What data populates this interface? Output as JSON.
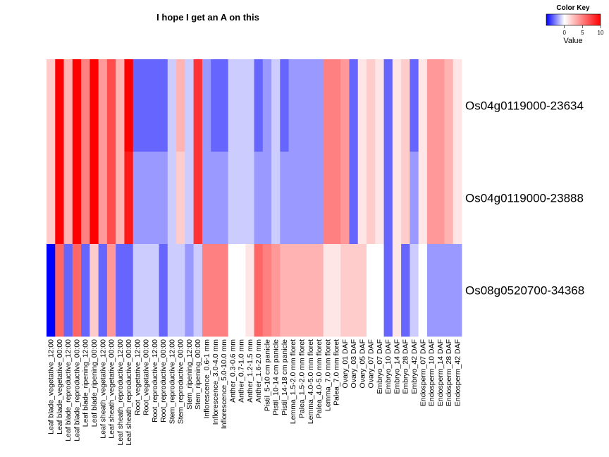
{
  "chart_data": {
    "type": "heatmap",
    "title": "I hope I get an A on this",
    "rows": [
      "Os04g0119000-23634",
      "Os04g0119000-23888",
      "Os08g0520700-34368"
    ],
    "columns": [
      "Leaf blade_vegetative_12:00",
      "Leaf blade_vegetative_00:00",
      "Leaf blade_reproductive_12:00",
      "Leaf blade_reproductive_00:00",
      "Leaf blade_ripening_12:00",
      "Leaf blade_ripening_00:00",
      "Leaf sheath_vegetative_12:00",
      "Leaf sheath_vegetative_00:00",
      "Leaf sheath_reproductive_12:00",
      "Leaf sheath_reproductive_00:00",
      "Root_vegetative_12:00",
      "Root_vegetative_00:00",
      "Root_reproductive_12:00",
      "Root_reproductive_00:00",
      "Stem_reproductive_12:00",
      "Stem_reproductive_00:00",
      "Stem_ripening_12:00",
      "Stem_ripening_00:00",
      "Inflorescence_0.6-1 mm",
      "Inflorescence_3.0-4.0 mm",
      "Inflorescence_5.0-10.0 mm",
      "Anther_0.3-0.6 mm",
      "Anther_0.7-1.0 mm",
      "Anther_1.2-1.5 mm",
      "Anther_1.6-2.0 mm",
      "Pistil_5-10 cm panicle",
      "Pistil_10-14 cm panicle",
      "Pistil_14-18 cm panicle",
      "Lemma_1.5-2.0 mm floret",
      "Palea_1.5-2.0 mm floret",
      "Lemma_4.0-5.0 mm floret",
      "Palea_4.0-5.0 mm floret",
      "Lemma_7.0 mm floret",
      "Palea_7.0 mm floret",
      "Ovary_01 DAF",
      "Ovary_03 DAF",
      "Ovary_05 DAF",
      "Ovary_07 DAF",
      "Embryo_07 DAF",
      "Embryo_10 DAF",
      "Embryo_14 DAF",
      "Embryo_28 DAF",
      "Embryo_42 DAF",
      "Endosperm_07 DAF",
      "Endosperm_10 DAF",
      "Endosperm_14 DAF",
      "Endosperm_28 DAF",
      "Endosperm_42 DAF"
    ],
    "values": [
      [
        2,
        10,
        3,
        10,
        5,
        10,
        4,
        7,
        3,
        10,
        -3,
        -3,
        -3,
        -3,
        -1,
        3,
        -1,
        8,
        -2,
        -3,
        -3,
        -1,
        -1,
        -1,
        -3,
        -2,
        -1,
        -3,
        -2,
        -2,
        -2,
        -2,
        5,
        5,
        4,
        -3,
        1,
        2,
        1,
        -3,
        1,
        2,
        -3,
        1,
        4,
        4,
        3,
        1
      ],
      [
        2,
        10,
        3,
        10,
        5,
        10,
        4,
        7,
        3,
        9,
        -2,
        -2,
        -2,
        -2,
        -1,
        2,
        -1,
        8,
        -2,
        -2,
        -2,
        -1,
        -1,
        -1,
        -2,
        -2,
        -1,
        -2,
        -2,
        -2,
        -2,
        -2,
        5,
        5,
        4,
        -3,
        1,
        2,
        1,
        -3,
        1,
        2,
        -2,
        1,
        4,
        4,
        3,
        1
      ],
      [
        -5,
        6,
        -3,
        6,
        -3,
        2,
        -3,
        4,
        -3,
        -3,
        -1,
        -1,
        -1,
        -3,
        -1,
        -1,
        -2,
        -1,
        5,
        5,
        5,
        0,
        0,
        1,
        6,
        5,
        4,
        3,
        3,
        3,
        3,
        3,
        1,
        1,
        2,
        2,
        2,
        0,
        0,
        -3,
        1,
        -3,
        -1,
        0,
        -2,
        -2,
        -2,
        -2
      ]
    ],
    "color_key": {
      "title": "Color Key",
      "label": "Value",
      "ticks": [
        0,
        5,
        10
      ],
      "range": [
        -5,
        10
      ],
      "low_color": "#0000ff",
      "mid_color": "#ffffff",
      "high_color": "#ff0000"
    }
  }
}
